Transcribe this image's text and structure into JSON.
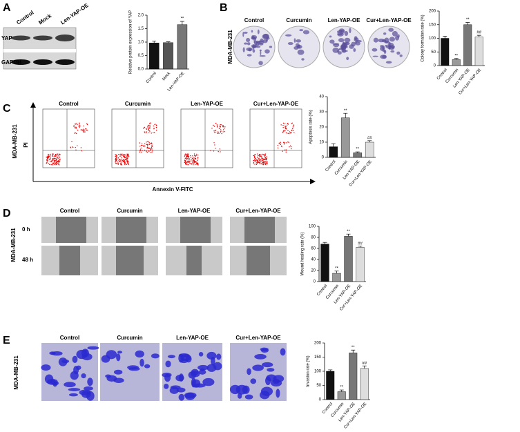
{
  "panels": [
    {
      "letter": "A",
      "blot_lanes": [
        "Control",
        "Mock",
        "Len-YAP-OE"
      ],
      "blot_rows": [
        "YAP",
        "GAPDH"
      ]
    },
    {
      "letter": "B",
      "cell_line": "MDA-MB-231",
      "image_labels": [
        "Control",
        "Curcumin",
        "Len-YAP-OE",
        "Cur+Len-YAP-OE"
      ]
    },
    {
      "letter": "C",
      "cell_line": "MDA-MB-231",
      "image_labels": [
        "Control",
        "Curcumin",
        "Len-YAP-OE",
        "Cur+Len-YAP-OE"
      ],
      "y_axis": "PI",
      "x_axis": "Annexin V-FITC"
    },
    {
      "letter": "D",
      "cell_line": "MDA-MB-231",
      "image_labels": [
        "Control",
        "Curcumin",
        "Len-YAP-OE",
        "Cur+Len-YAP-OE"
      ],
      "row_labels": [
        "0 h",
        "48 h"
      ]
    },
    {
      "letter": "E",
      "cell_line": "MDA-MB-231",
      "image_labels": [
        "Control",
        "Curcumin",
        "Len-YAP-OE",
        "Cur+Len-YAP-OE"
      ]
    }
  ],
  "chart_data": [
    {
      "type": "bar",
      "y_label": "Relative protein expression of YAP",
      "categories": [
        "Control",
        "Mock",
        "Len-YAP-OE"
      ],
      "values": [
        0.97,
        0.98,
        1.65
      ],
      "errors": [
        0.07,
        0.03,
        0.12
      ],
      "value_annotations": [
        null,
        null,
        "**"
      ],
      "colors": [
        "#111111",
        "#555555",
        "#777777"
      ],
      "ylim": [
        0,
        2
      ],
      "yticks": [
        {
          "value": 0,
          "label": "0.0"
        },
        0.5,
        {
          "value": 1,
          "label": "1.0"
        },
        1.5,
        {
          "value": 2,
          "label": "2.0"
        }
      ]
    },
    {
      "type": "bar",
      "y_label": "Colony formation rate (%)",
      "categories": [
        "Control",
        "Curcumin",
        "Len-YAP-OE",
        "Cur+Len-YAP-OE"
      ],
      "values": [
        100,
        22,
        150,
        105
      ],
      "errors": [
        8,
        4,
        8,
        6
      ],
      "value_annotations": [
        null,
        "**",
        "**",
        "##"
      ],
      "colors": [
        "#111111",
        "#999999",
        "#777777",
        "#dddddd"
      ],
      "ylim": [
        0,
        200
      ],
      "yticks": [
        0,
        50,
        100,
        150,
        200
      ]
    },
    {
      "type": "bar",
      "y_label": "Apoptosis rate (%)",
      "categories": [
        "Control",
        "Curcumin",
        "Len-YAP-OE",
        "Cur+Len-YAP-OE"
      ],
      "values": [
        7,
        26,
        3,
        10
      ],
      "errors": [
        2,
        3,
        0.6,
        1
      ],
      "value_annotations": [
        null,
        "**",
        "**",
        "##"
      ],
      "colors": [
        "#111111",
        "#999999",
        "#777777",
        "#dddddd"
      ],
      "ylim": [
        0,
        40
      ],
      "yticks": [
        0,
        10,
        20,
        30,
        40
      ]
    },
    {
      "type": "bar",
      "y_label": "Wound healing rate (%)",
      "categories": [
        "Control",
        "Curcumin",
        "Len-YAP-OE",
        "Cur+Len-YAP-OE"
      ],
      "values": [
        68,
        15,
        82,
        62
      ],
      "errors": [
        3,
        4,
        4,
        2
      ],
      "value_annotations": [
        null,
        "**",
        "**",
        "##"
      ],
      "colors": [
        "#111111",
        "#999999",
        "#777777",
        "#dddddd"
      ],
      "ylim": [
        0,
        100
      ],
      "yticks": [
        0,
        20,
        40,
        60,
        80,
        100
      ]
    },
    {
      "type": "bar",
      "y_label": "Invasion rate (%)",
      "categories": [
        "Control",
        "Curcumin",
        "Len-YAP-OE",
        "Cur+Len-YAP-OE"
      ],
      "values": [
        100,
        28,
        165,
        110
      ],
      "errors": [
        5,
        6,
        10,
        9
      ],
      "value_annotations": [
        null,
        "**",
        "**",
        "##"
      ],
      "colors": [
        "#111111",
        "#999999",
        "#777777",
        "#dddddd"
      ],
      "ylim": [
        0,
        200
      ],
      "yticks": [
        0,
        50,
        100,
        150,
        200
      ]
    }
  ]
}
